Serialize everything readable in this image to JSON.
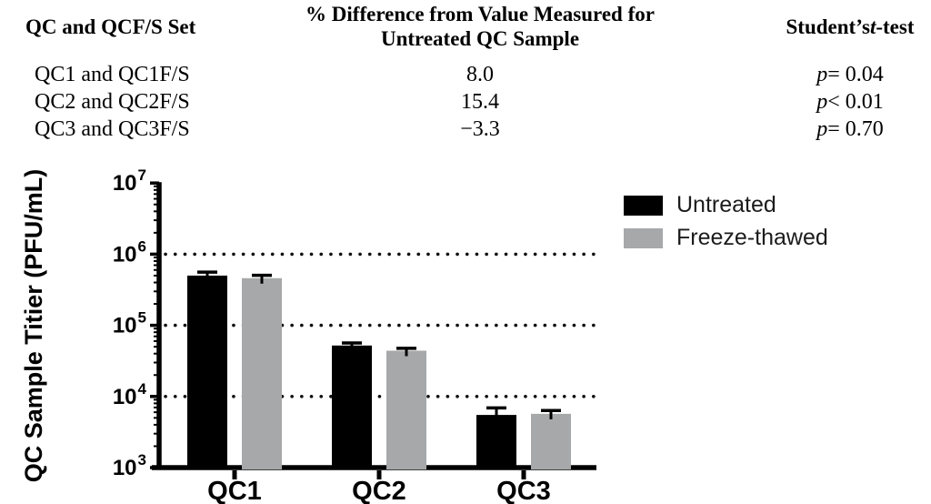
{
  "table": {
    "col1_header": "QC and QCF/S Set",
    "col2_header_line1": "% Difference from Value Measured for",
    "col2_header_line2": "Untreated QC Sample",
    "col3_header_pre": "Student’s ",
    "col3_header_italic": "t",
    "col3_header_post": "-test",
    "rows": [
      {
        "set": "QC1 and QC1F/S",
        "pct_diff": "8.0",
        "p_italic": "p",
        "p_rest": " = 0.04"
      },
      {
        "set": "QC2 and QC2F/S",
        "pct_diff": "15.4",
        "p_italic": "p",
        "p_rest": " < 0.01"
      },
      {
        "set": "QC3 and QC3F/S",
        "pct_diff": "−3.3",
        "p_italic": "p",
        "p_rest": " = 0.70"
      }
    ]
  },
  "chart_data": {
    "type": "bar",
    "scale_y": "log10",
    "categories": [
      "QC1",
      "QC2",
      "QC3"
    ],
    "series": [
      {
        "name": "Untreated",
        "color": "#000000",
        "values": [
          500000,
          52000,
          5500
        ],
        "error_upper": [
          60000,
          4500,
          1400
        ]
      },
      {
        "name": "Freeze-thawed",
        "color": "#A6A8AA",
        "values": [
          460000,
          44000,
          5700
        ],
        "error_upper": [
          45000,
          3500,
          650
        ]
      }
    ],
    "ylabel": "QC Sample Titier (PFU/mL)",
    "ylim": [
      1000,
      10000000
    ],
    "y_tick_exponents": [
      3,
      4,
      5,
      6,
      7
    ],
    "y_tick_base": "10",
    "gridlines": [
      10000,
      100000,
      1000000
    ],
    "gridline_style": "dotted",
    "grid_color": "#111111",
    "axis_color": "#000000",
    "legend_position": "top-right"
  }
}
